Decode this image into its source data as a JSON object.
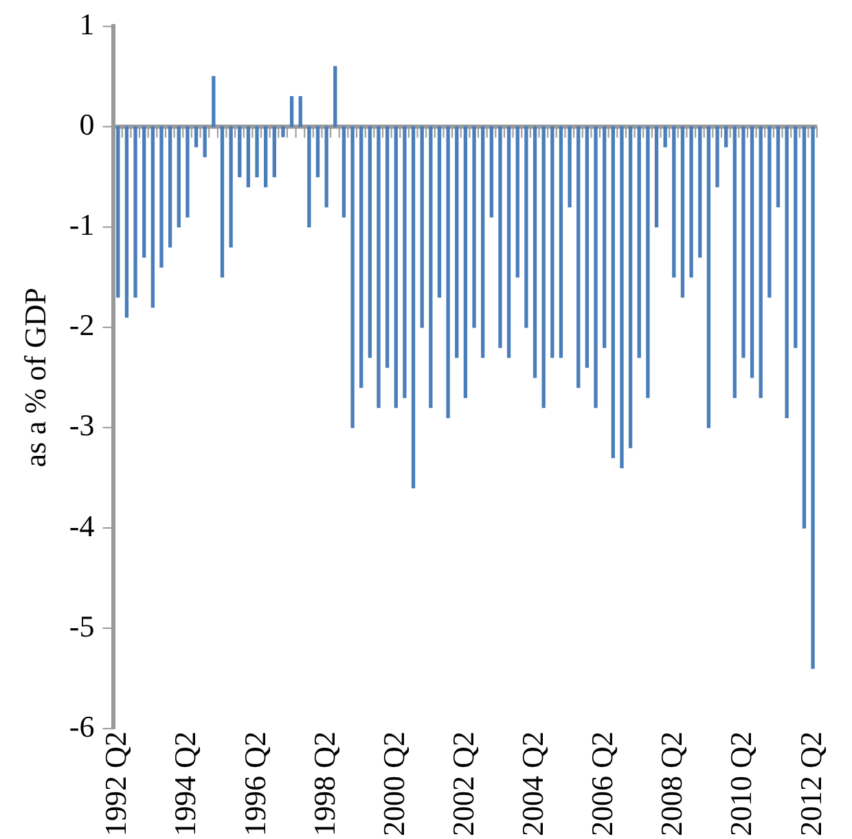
{
  "chart_data": {
    "type": "bar",
    "ylabel": "as a % of GDP",
    "color": "#4a7ebb",
    "categories": [
      "1992 Q2",
      null,
      null,
      null,
      null,
      null,
      null,
      null,
      "1994 Q2",
      null,
      null,
      null,
      null,
      null,
      null,
      null,
      "1996 Q2",
      null,
      null,
      null,
      null,
      null,
      null,
      null,
      "1998 Q2",
      null,
      null,
      null,
      null,
      null,
      null,
      null,
      "2000 Q2",
      null,
      null,
      null,
      null,
      null,
      null,
      null,
      "2002 Q2",
      null,
      null,
      null,
      null,
      null,
      null,
      null,
      "2004 Q2",
      null,
      null,
      null,
      null,
      null,
      null,
      null,
      "2006 Q2",
      null,
      null,
      null,
      null,
      null,
      null,
      null,
      "2008 Q2",
      null,
      null,
      null,
      null,
      null,
      null,
      null,
      "2010 Q2",
      null,
      null,
      null,
      null,
      null,
      null,
      null,
      "2012 Q2"
    ],
    "values": [
      -1.7,
      -1.9,
      -1.7,
      -1.3,
      -1.8,
      -1.4,
      -1.2,
      -1.0,
      -0.9,
      -0.2,
      -0.3,
      0.5,
      -1.5,
      -1.2,
      -0.5,
      -0.6,
      -0.5,
      -0.6,
      -0.5,
      -0.1,
      0.3,
      0.3,
      -1.0,
      -0.5,
      -0.8,
      0.6,
      -0.9,
      -3.0,
      -2.6,
      -2.3,
      -2.8,
      -2.4,
      -2.8,
      -2.7,
      -3.6,
      -2.0,
      -2.8,
      -1.7,
      -2.9,
      -2.3,
      -2.7,
      -2.0,
      -2.3,
      -0.9,
      -2.2,
      -2.3,
      -1.5,
      -2.0,
      -2.5,
      -2.8,
      -2.3,
      -2.3,
      -0.8,
      -2.6,
      -2.4,
      -2.8,
      -2.2,
      -3.3,
      -3.4,
      -3.2,
      -2.3,
      -2.7,
      -1.0,
      -0.2,
      -1.5,
      -1.7,
      -1.5,
      -1.3,
      -3.0,
      -0.6,
      -0.2,
      -2.7,
      -2.3,
      -2.5,
      -2.7,
      -1.7,
      -0.8,
      -2.9,
      -2.2,
      -4.0,
      -5.4
    ],
    "ylim": [
      -6,
      1
    ],
    "yticks": [
      -6,
      -5,
      -4,
      -3,
      -2,
      -1,
      0,
      1
    ],
    "ref_lines": [
      {
        "axis": "y",
        "value": 0,
        "color": "#999999"
      }
    ],
    "legend": false
  }
}
